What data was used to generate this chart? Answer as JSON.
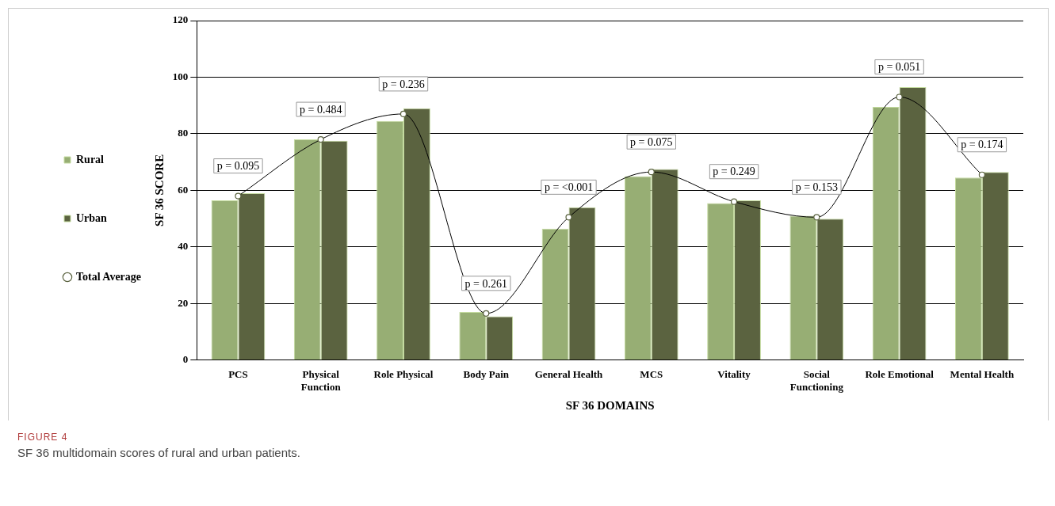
{
  "chart_data": {
    "type": "bar",
    "xlabel": "SF 36 DOMAINS",
    "ylabel": "SF 36 SCORE",
    "categories": [
      "PCS",
      "Physical Function",
      "Role Physical",
      "Body Pain",
      "General Health",
      "MCS",
      "Vitality",
      "Social Functioning",
      "Role Emotional",
      "Mental Health"
    ],
    "series": [
      {
        "name": "Rural",
        "color": "#97ae74",
        "values": [
          56.5,
          78,
          84.5,
          17,
          46.5,
          65,
          55.5,
          51,
          89.5,
          64.5
        ]
      },
      {
        "name": "Urban",
        "color": "#5b6340",
        "values": [
          59,
          77.5,
          89,
          15.5,
          54,
          67.5,
          56.5,
          50,
          96.5,
          66.5
        ]
      },
      {
        "name": "Total Average",
        "type": "line",
        "color": "#000000",
        "marker": "circle",
        "values": [
          58,
          78,
          87,
          16.5,
          50.5,
          66.5,
          56,
          50.5,
          93,
          65.5
        ]
      }
    ],
    "ylim": [
      0,
      120
    ],
    "yticks": [
      0,
      20,
      40,
      60,
      80,
      100,
      120
    ],
    "grid": "y",
    "legend": "left",
    "annotations": [
      {
        "text": "p = 0.095",
        "x": "PCS",
        "y": 58
      },
      {
        "text": "p = 0.484",
        "x": "Physical Function",
        "y": 78
      },
      {
        "text": "p = 0.236",
        "x": "Role Physical",
        "y": 87
      },
      {
        "text": "p = 0.261",
        "x": "Body Pain",
        "y": 16.5
      },
      {
        "text": "p = <0.001",
        "x": "General Health",
        "y": 50.5
      },
      {
        "text": "p = 0.075",
        "x": "MCS",
        "y": 66.5
      },
      {
        "text": "p = 0.249",
        "x": "Vitality",
        "y": 56
      },
      {
        "text": "p = 0.153",
        "x": "Social Functioning",
        "y": 50.5
      },
      {
        "text": "p = 0.051",
        "x": "Role Emotional",
        "y": 93
      },
      {
        "text": "p = 0.174",
        "x": "Mental Health",
        "y": 65.5
      },
      "FIGURE 4",
      "SF 36 multidomain scores of rural and urban patients."
    ]
  }
}
